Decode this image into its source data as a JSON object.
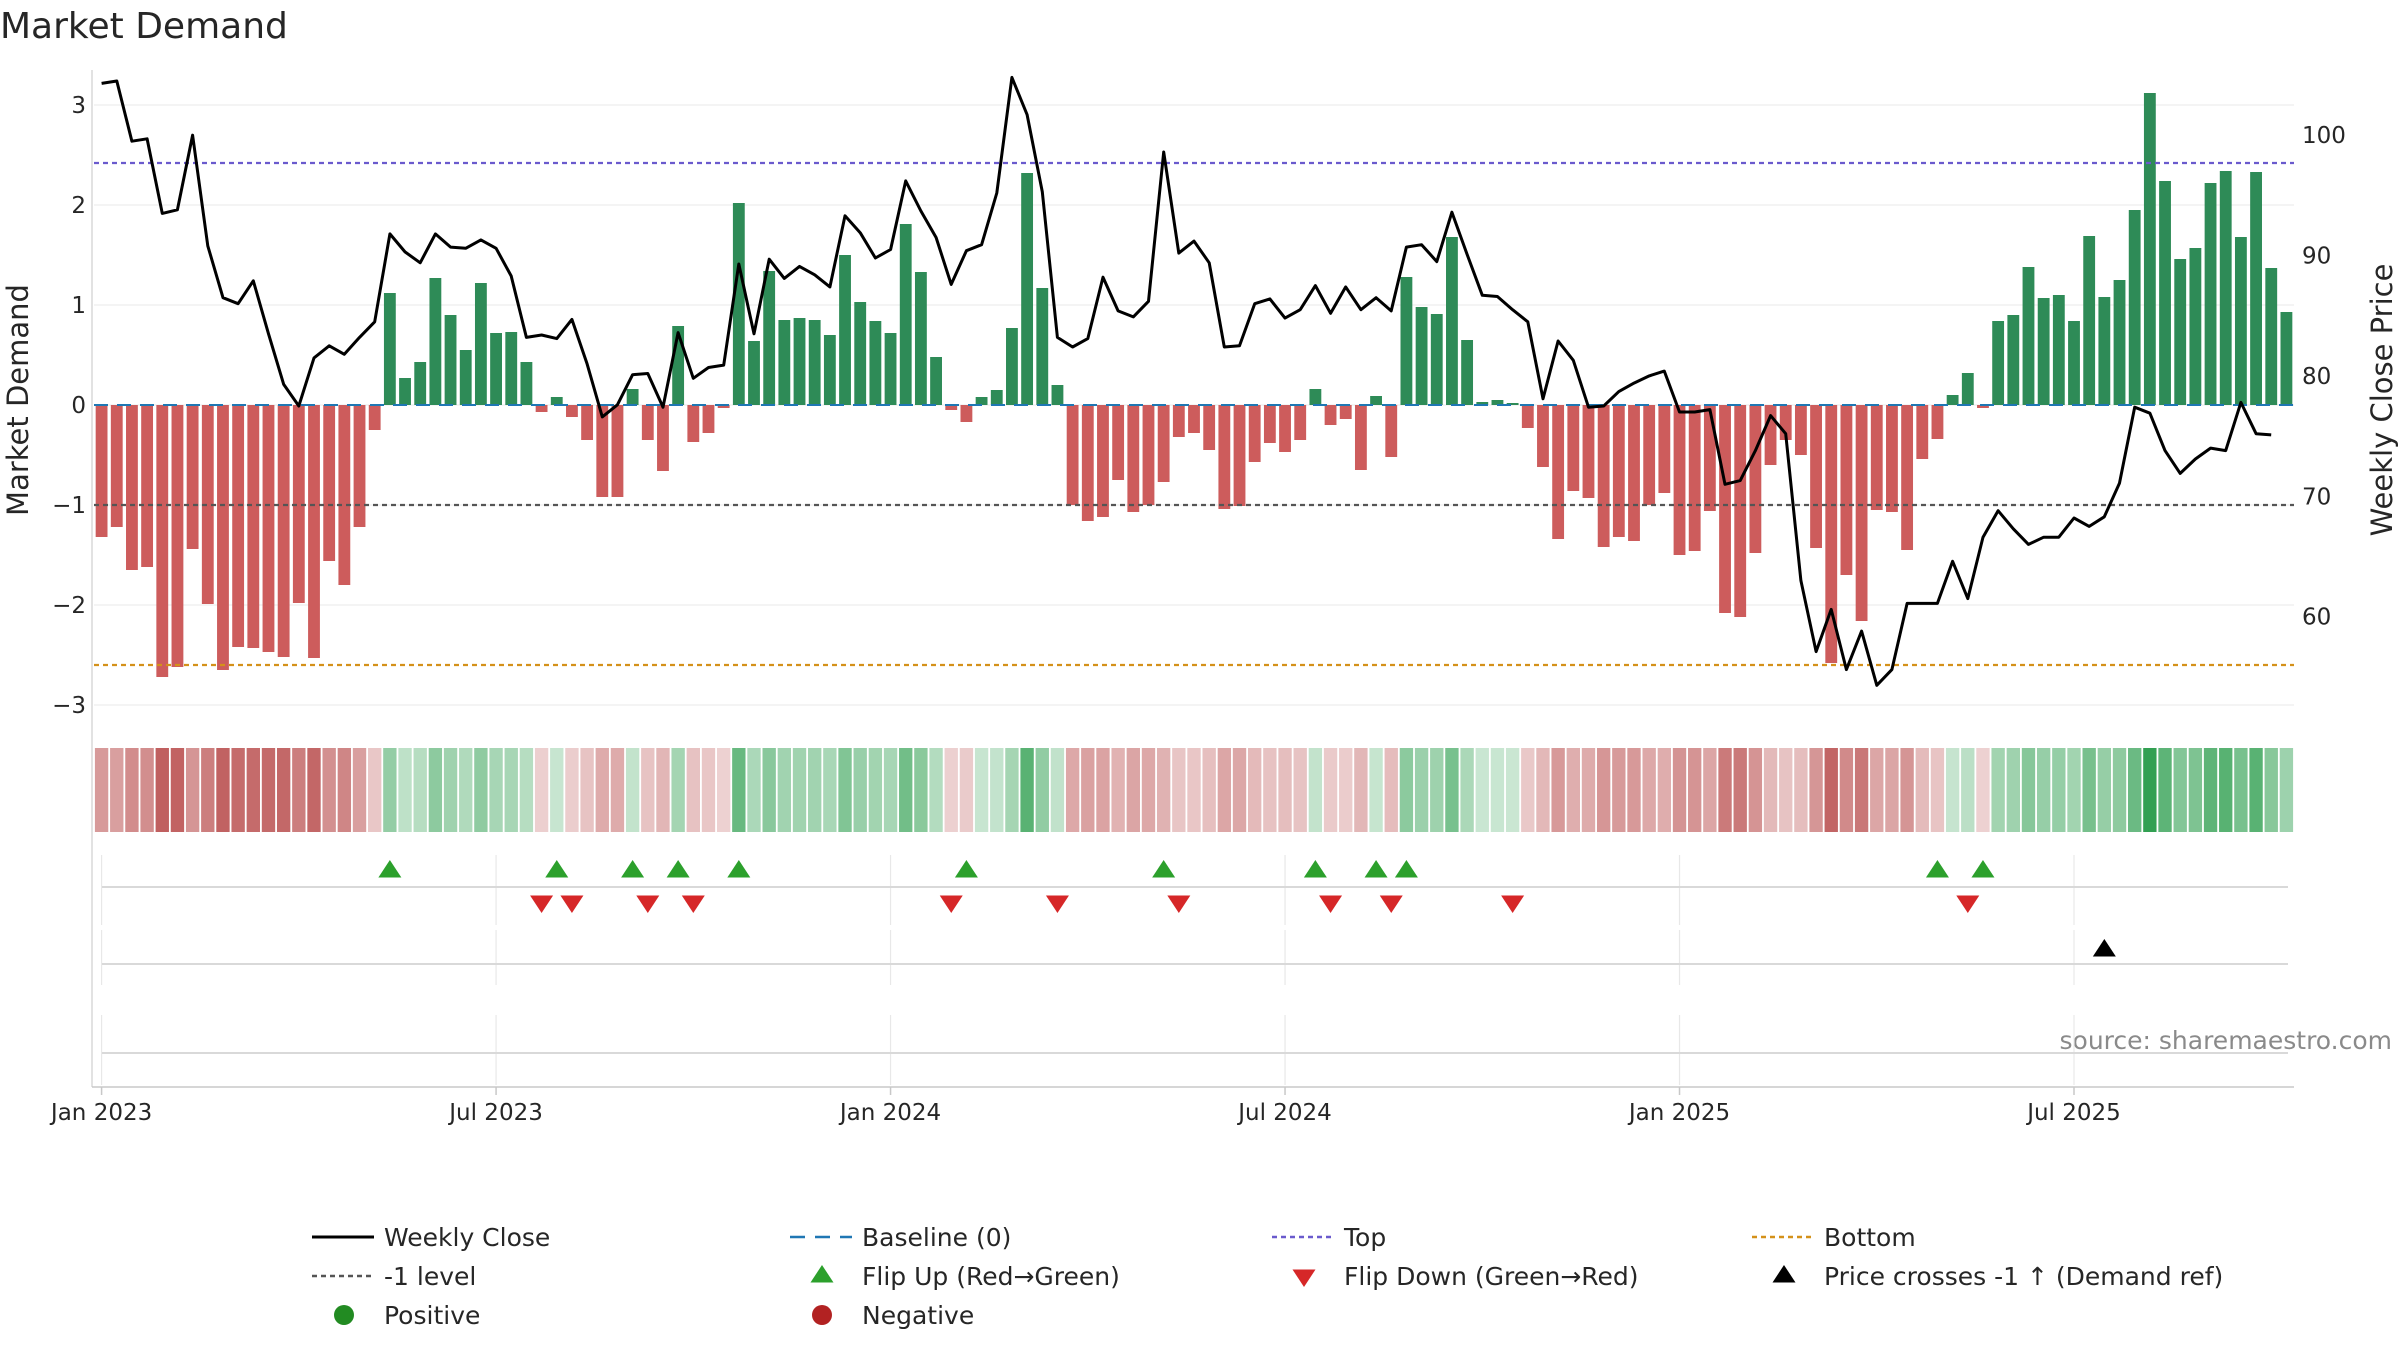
{
  "chart_data": {
    "type": "bar",
    "title": "Market Demand",
    "ylabel": "Market Demand",
    "y2label": "Weekly Close Price",
    "ylim": [
      -3.2,
      3.3
    ],
    "y2lim": [
      51,
      105
    ],
    "yticks": [
      "3",
      "2",
      "1",
      "0",
      "−1",
      "−2",
      "−3"
    ],
    "yticks_values": [
      3,
      2,
      1,
      0,
      -1,
      -2,
      -3
    ],
    "y2ticks": [
      "100",
      "90",
      "80",
      "70",
      "60"
    ],
    "y2ticks_values": [
      100,
      90,
      80,
      70,
      60
    ],
    "xticks": [
      "Jan 2023",
      "Jul 2023",
      "Jan 2024",
      "Jul 2024",
      "Jan 2025",
      "Jul 2025"
    ],
    "xticks_week_index": [
      0.5,
      26.5,
      52.5,
      78.5,
      104.5,
      130.5
    ],
    "reference_lines": {
      "top": 2.42,
      "bottom": -2.6,
      "minus_one": -1,
      "baseline": 0
    },
    "series": [
      {
        "name": "Market Demand",
        "values": [
          -1.32,
          -1.22,
          -1.65,
          -1.62,
          -2.72,
          -2.62,
          -1.44,
          -1.99,
          -2.65,
          -2.42,
          -2.43,
          -2.47,
          -2.52,
          -1.98,
          -2.53,
          -1.56,
          -1.8,
          -1.22,
          -0.25,
          1.12,
          0.27,
          0.43,
          1.27,
          0.9,
          0.55,
          1.22,
          0.72,
          0.73,
          0.43,
          -0.07,
          0.08,
          -0.12,
          -0.35,
          -0.92,
          -0.92,
          0.16,
          -0.35,
          -0.66,
          0.79,
          -0.37,
          -0.28,
          -0.03,
          2.02,
          0.64,
          1.34,
          0.85,
          0.87,
          0.85,
          0.7,
          1.5,
          1.03,
          0.84,
          0.72,
          1.81,
          1.33,
          0.48,
          -0.05,
          -0.17,
          0.08,
          0.15,
          0.77,
          2.32,
          1.17,
          0.2,
          -1.0,
          -1.16,
          -1.12,
          -0.75,
          -1.07,
          -1.0,
          -0.77,
          -0.32,
          -0.28,
          -0.45,
          -1.04,
          -1.01,
          -0.57,
          -0.38,
          -0.47,
          -0.35,
          0.16,
          -0.2,
          -0.14,
          -0.65,
          0.09,
          -0.52,
          1.28,
          0.98,
          0.91,
          1.68,
          0.65,
          0.03,
          0.05,
          0.02,
          -0.23,
          -0.62,
          -1.34,
          -0.86,
          -0.93,
          -1.42,
          -1.32,
          -1.36,
          -1.0,
          -0.88,
          -1.5,
          -1.46,
          -1.06,
          -2.08,
          -2.12,
          -1.48,
          -0.6,
          -0.35,
          -0.5,
          -1.43,
          -2.58,
          -1.7,
          -2.16,
          -1.05,
          -1.07,
          -1.45,
          -0.54,
          -0.34,
          0.1,
          0.32,
          -0.03,
          0.84,
          0.9,
          1.38,
          1.07,
          1.1,
          0.84,
          1.69,
          1.08,
          1.25,
          1.95,
          3.12,
          2.24,
          1.46,
          1.57,
          2.22,
          2.34,
          1.68,
          2.33,
          1.37,
          0.93
        ]
      },
      {
        "name": "Weekly Close",
        "values": [
          104.3,
          104.5,
          99.5,
          99.7,
          93.5,
          93.8,
          100.0,
          90.8,
          86.5,
          86.0,
          87.9,
          83.5,
          79.3,
          77.5,
          81.5,
          82.5,
          81.8,
          83.2,
          84.5,
          91.8,
          90.3,
          89.4,
          91.8,
          90.7,
          90.6,
          91.3,
          90.6,
          88.3,
          83.2,
          83.4,
          83.1,
          84.7,
          81.0,
          76.6,
          77.6,
          80.1,
          80.2,
          77.4,
          83.6,
          79.8,
          80.7,
          80.9,
          89.3,
          83.5,
          89.7,
          88.1,
          89.1,
          88.4,
          87.4,
          93.3,
          91.9,
          89.8,
          90.5,
          96.2,
          93.7,
          91.5,
          87.6,
          90.4,
          90.9,
          95.2,
          104.8,
          101.7,
          95.3,
          83.2,
          82.4,
          83.1,
          88.2,
          85.4,
          84.9,
          86.2,
          98.6,
          90.2,
          91.2,
          89.4,
          82.4,
          82.5,
          86.0,
          86.4,
          84.8,
          85.5,
          87.5,
          85.2,
          87.4,
          85.5,
          86.5,
          85.4,
          90.7,
          90.9,
          89.5,
          93.6,
          90.1,
          86.7,
          86.6,
          85.5,
          84.5,
          78.1,
          82.9,
          81.3,
          77.4,
          77.5,
          78.7,
          79.4,
          80.0,
          80.4,
          77.0,
          77.0,
          77.2,
          71.0,
          71.3,
          73.8,
          76.7,
          75.2,
          63.0,
          57.1,
          60.6,
          55.6,
          58.8,
          54.3,
          55.6,
          61.1,
          61.1,
          61.1,
          64.6,
          61.5,
          66.6,
          68.8,
          67.3,
          66.0,
          66.6,
          66.6,
          68.2,
          67.5,
          68.3,
          71.1,
          77.4,
          76.9,
          73.8,
          71.9,
          73.1,
          74.0,
          73.8,
          77.8,
          75.2,
          75.1
        ]
      }
    ],
    "flip_up_weeks": [
      19,
      30,
      35,
      38,
      42,
      57,
      70,
      80,
      84,
      86,
      121,
      124
    ],
    "flip_down_weeks": [
      29,
      31,
      36,
      39,
      56,
      63,
      71,
      81,
      85,
      93,
      123
    ],
    "price_cross_weeks": [
      132
    ],
    "legend": [
      {
        "label": "Weekly Close",
        "kind": "line",
        "color": "#000000"
      },
      {
        "label": "Baseline (0)",
        "kind": "dash",
        "color": "#1f77b4"
      },
      {
        "label": "Top",
        "kind": "dot",
        "color": "#6a5acd"
      },
      {
        "label": "Bottom",
        "kind": "dot",
        "color": "#d4911a"
      },
      {
        "label": "-1 level",
        "kind": "dot",
        "color": "#555555"
      },
      {
        "label": "Flip Up (Red→Green)",
        "kind": "tri-up",
        "color": "#2ca02c"
      },
      {
        "label": "Flip Down (Green→Red)",
        "kind": "tri-down",
        "color": "#d62728"
      },
      {
        "label": "Price crosses -1 ↑ (Demand ref)",
        "kind": "tri-up",
        "color": "#000000"
      },
      {
        "label": "Positive",
        "kind": "circle",
        "color": "#228b22"
      },
      {
        "label": "Negative",
        "kind": "circle",
        "color": "#b22222"
      }
    ],
    "source": "source: sharemaestro.com",
    "colors": {
      "positive_bar": "#2e8b57",
      "negative_bar": "#cd5c5c",
      "price_line": "#000000",
      "top_line": "#6a5acd",
      "bottom_line": "#d4911a",
      "minus_one_line": "#555555",
      "baseline": "#1f77b4",
      "grid": "#e8e8e8"
    }
  }
}
